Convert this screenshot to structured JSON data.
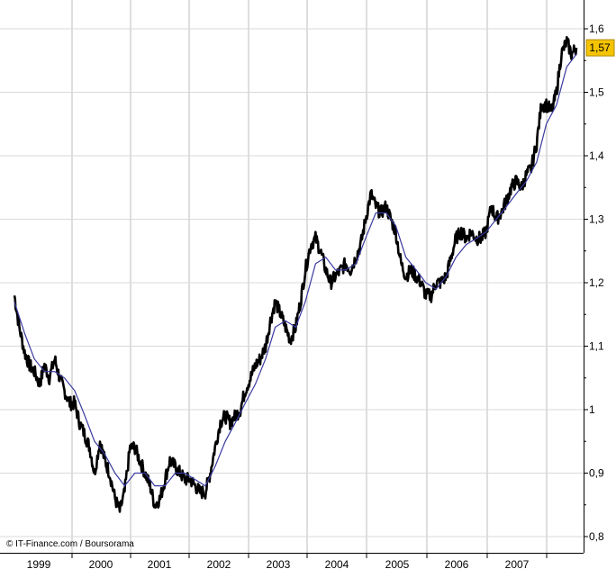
{
  "chart_data": {
    "type": "line",
    "title": "",
    "xlabel": "",
    "ylabel": "",
    "credit": "© IT-Finance.com / Boursorama",
    "current_value_label": "1,57",
    "current_value": 1.57,
    "x_ticks": [
      "1999",
      "2000",
      "2001",
      "2002",
      "2003",
      "2004",
      "2005",
      "2006",
      "2007"
    ],
    "y_ticks": [
      {
        "value": 0.8,
        "label": "0,8"
      },
      {
        "value": 0.9,
        "label": "0,9"
      },
      {
        "value": 1.0,
        "label": "1"
      },
      {
        "value": 1.1,
        "label": "1,1"
      },
      {
        "value": 1.2,
        "label": "1,2"
      },
      {
        "value": 1.3,
        "label": "1,3"
      },
      {
        "value": 1.4,
        "label": "1,4"
      },
      {
        "value": 1.5,
        "label": "1,5"
      },
      {
        "value": 1.6,
        "label": "1,6"
      }
    ],
    "xlim": [
      1999.0,
      2007.95
    ],
    "ylim": [
      0.78,
      1.62
    ],
    "grid": true,
    "series": [
      {
        "color": "#000000",
        "style": "price",
        "points": [
          [
            1999.0,
            1.18
          ],
          [
            1999.08,
            1.13
          ],
          [
            1999.17,
            1.09
          ],
          [
            1999.25,
            1.07
          ],
          [
            1999.33,
            1.06
          ],
          [
            1999.42,
            1.04
          ],
          [
            1999.5,
            1.07
          ],
          [
            1999.58,
            1.05
          ],
          [
            1999.67,
            1.08
          ],
          [
            1999.75,
            1.05
          ],
          [
            1999.83,
            1.03
          ],
          [
            1999.92,
            1.01
          ],
          [
            2000.0,
            1.01
          ],
          [
            2000.08,
            0.98
          ],
          [
            2000.17,
            0.96
          ],
          [
            2000.25,
            0.94
          ],
          [
            2000.33,
            0.9
          ],
          [
            2000.42,
            0.95
          ],
          [
            2000.5,
            0.92
          ],
          [
            2000.58,
            0.9
          ],
          [
            2000.67,
            0.86
          ],
          [
            2000.75,
            0.84
          ],
          [
            2000.83,
            0.87
          ],
          [
            2000.92,
            0.94
          ],
          [
            2001.0,
            0.94
          ],
          [
            2001.08,
            0.92
          ],
          [
            2001.17,
            0.9
          ],
          [
            2001.25,
            0.88
          ],
          [
            2001.33,
            0.85
          ],
          [
            2001.42,
            0.86
          ],
          [
            2001.5,
            0.89
          ],
          [
            2001.58,
            0.92
          ],
          [
            2001.67,
            0.91
          ],
          [
            2001.75,
            0.9
          ],
          [
            2001.83,
            0.89
          ],
          [
            2001.92,
            0.89
          ],
          [
            2002.0,
            0.88
          ],
          [
            2002.08,
            0.87
          ],
          [
            2002.17,
            0.87
          ],
          [
            2002.25,
            0.9
          ],
          [
            2002.33,
            0.94
          ],
          [
            2002.42,
            0.98
          ],
          [
            2002.5,
            0.99
          ],
          [
            2002.58,
            0.98
          ],
          [
            2002.67,
            0.99
          ],
          [
            2002.75,
            1.0
          ],
          [
            2002.83,
            1.03
          ],
          [
            2002.92,
            1.05
          ],
          [
            2003.0,
            1.07
          ],
          [
            2003.08,
            1.08
          ],
          [
            2003.17,
            1.1
          ],
          [
            2003.25,
            1.14
          ],
          [
            2003.33,
            1.17
          ],
          [
            2003.42,
            1.15
          ],
          [
            2003.5,
            1.13
          ],
          [
            2003.58,
            1.11
          ],
          [
            2003.67,
            1.13
          ],
          [
            2003.75,
            1.17
          ],
          [
            2003.83,
            1.22
          ],
          [
            2003.92,
            1.26
          ],
          [
            2004.0,
            1.27
          ],
          [
            2004.08,
            1.25
          ],
          [
            2004.17,
            1.22
          ],
          [
            2004.25,
            1.2
          ],
          [
            2004.33,
            1.21
          ],
          [
            2004.42,
            1.22
          ],
          [
            2004.5,
            1.23
          ],
          [
            2004.58,
            1.22
          ],
          [
            2004.67,
            1.24
          ],
          [
            2004.75,
            1.26
          ],
          [
            2004.83,
            1.3
          ],
          [
            2004.92,
            1.34
          ],
          [
            2005.0,
            1.32
          ],
          [
            2005.08,
            1.31
          ],
          [
            2005.17,
            1.32
          ],
          [
            2005.25,
            1.3
          ],
          [
            2005.33,
            1.28
          ],
          [
            2005.42,
            1.23
          ],
          [
            2005.5,
            1.21
          ],
          [
            2005.58,
            1.22
          ],
          [
            2005.67,
            1.21
          ],
          [
            2005.75,
            1.2
          ],
          [
            2005.83,
            1.18
          ],
          [
            2005.92,
            1.18
          ],
          [
            2006.0,
            1.2
          ],
          [
            2006.08,
            1.2
          ],
          [
            2006.17,
            1.21
          ],
          [
            2006.25,
            1.24
          ],
          [
            2006.33,
            1.27
          ],
          [
            2006.42,
            1.28
          ],
          [
            2006.5,
            1.27
          ],
          [
            2006.58,
            1.28
          ],
          [
            2006.67,
            1.27
          ],
          [
            2006.75,
            1.27
          ],
          [
            2006.83,
            1.28
          ],
          [
            2006.92,
            1.32
          ],
          [
            2007.0,
            1.3
          ],
          [
            2007.08,
            1.31
          ],
          [
            2007.17,
            1.33
          ],
          [
            2007.25,
            1.35
          ],
          [
            2007.33,
            1.36
          ],
          [
            2007.42,
            1.35
          ],
          [
            2007.5,
            1.37
          ],
          [
            2007.58,
            1.38
          ],
          [
            2007.67,
            1.42
          ],
          [
            2007.75,
            1.48
          ],
          [
            2007.83,
            1.48
          ],
          [
            2007.92,
            1.47
          ],
          [
            2008.0,
            1.5
          ],
          [
            2008.08,
            1.56
          ],
          [
            2008.17,
            1.58
          ],
          [
            2008.25,
            1.56
          ],
          [
            2008.33,
            1.57
          ]
        ]
      },
      {
        "color": "#3a3aa0",
        "style": "moving-average",
        "points": [
          [
            1999.0,
            1.17
          ],
          [
            1999.17,
            1.12
          ],
          [
            1999.33,
            1.08
          ],
          [
            1999.5,
            1.06
          ],
          [
            1999.67,
            1.06
          ],
          [
            1999.83,
            1.05
          ],
          [
            2000.0,
            1.03
          ],
          [
            2000.17,
            0.99
          ],
          [
            2000.33,
            0.95
          ],
          [
            2000.5,
            0.93
          ],
          [
            2000.67,
            0.9
          ],
          [
            2000.83,
            0.88
          ],
          [
            2001.0,
            0.9
          ],
          [
            2001.17,
            0.9
          ],
          [
            2001.33,
            0.88
          ],
          [
            2001.5,
            0.88
          ],
          [
            2001.67,
            0.9
          ],
          [
            2001.83,
            0.9
          ],
          [
            2002.0,
            0.89
          ],
          [
            2002.17,
            0.88
          ],
          [
            2002.33,
            0.91
          ],
          [
            2002.5,
            0.95
          ],
          [
            2002.67,
            0.98
          ],
          [
            2002.83,
            1.01
          ],
          [
            2003.0,
            1.04
          ],
          [
            2003.17,
            1.08
          ],
          [
            2003.33,
            1.13
          ],
          [
            2003.5,
            1.14
          ],
          [
            2003.67,
            1.13
          ],
          [
            2003.83,
            1.17
          ],
          [
            2004.0,
            1.23
          ],
          [
            2004.17,
            1.24
          ],
          [
            2004.33,
            1.22
          ],
          [
            2004.5,
            1.22
          ],
          [
            2004.67,
            1.23
          ],
          [
            2004.83,
            1.27
          ],
          [
            2005.0,
            1.31
          ],
          [
            2005.17,
            1.31
          ],
          [
            2005.33,
            1.29
          ],
          [
            2005.5,
            1.24
          ],
          [
            2005.67,
            1.22
          ],
          [
            2005.83,
            1.2
          ],
          [
            2006.0,
            1.19
          ],
          [
            2006.17,
            1.21
          ],
          [
            2006.33,
            1.24
          ],
          [
            2006.5,
            1.26
          ],
          [
            2006.67,
            1.27
          ],
          [
            2006.83,
            1.28
          ],
          [
            2007.0,
            1.3
          ],
          [
            2007.17,
            1.32
          ],
          [
            2007.33,
            1.34
          ],
          [
            2007.5,
            1.36
          ],
          [
            2007.67,
            1.39
          ],
          [
            2007.83,
            1.45
          ],
          [
            2008.0,
            1.48
          ],
          [
            2008.17,
            1.54
          ],
          [
            2008.33,
            1.56
          ]
        ]
      }
    ]
  }
}
